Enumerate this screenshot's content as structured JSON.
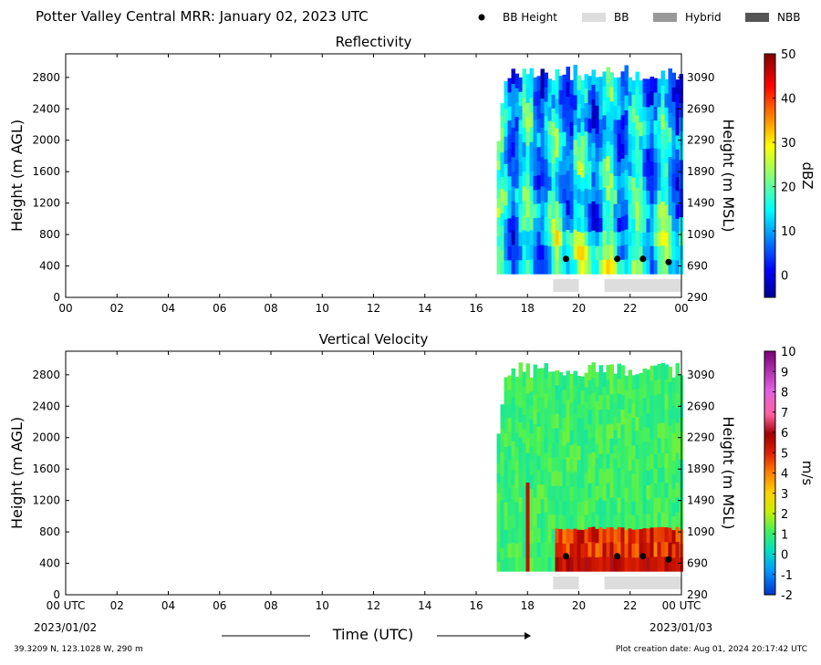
{
  "page": {
    "title": "Potter Valley Central MRR:  January 02, 2023 UTC",
    "location": "39.3209 N, 123.1028 W, 290 m",
    "creation_date": "Plot creation date: Aug 01, 2024 20:17:42 UTC",
    "time_label": "Time (UTC)",
    "start_date": "2023/01/02",
    "end_date": "2023/01/03"
  },
  "legend": {
    "items": [
      {
        "label": "BB Height",
        "color": "#000000",
        "kind": "dot"
      },
      {
        "label": "BB",
        "color": "#dddddd",
        "kind": "box"
      },
      {
        "label": "Hybrid",
        "color": "#999999",
        "kind": "box"
      },
      {
        "label": "NBB",
        "color": "#555555",
        "kind": "box"
      }
    ]
  },
  "chart_data": [
    {
      "type": "heatmap",
      "title": "Reflectivity",
      "ylabel": "Height (m AGL)",
      "ylabel_right": "Height (m MSL)",
      "xlim": [
        0,
        24
      ],
      "ylim": [
        0,
        3100
      ],
      "x_ticks": [
        "00",
        "02",
        "04",
        "06",
        "08",
        "10",
        "12",
        "14",
        "16",
        "18",
        "20",
        "22",
        "00"
      ],
      "y_ticks": [
        0,
        400,
        800,
        1200,
        1600,
        2000,
        2400,
        2800
      ],
      "y_ticks_right": [
        290,
        690,
        1090,
        1490,
        1890,
        2290,
        2690,
        3090
      ],
      "colorbar": {
        "label": "dBZ",
        "min": -5,
        "max": 50,
        "ticks": [
          0,
          10,
          20,
          30,
          40,
          50
        ],
        "colormap": "jet"
      },
      "data_start_hour": 16.8,
      "bb_height_points": [
        {
          "time": 19.5,
          "height": 490
        },
        {
          "time": 21.5,
          "height": 490
        },
        {
          "time": 22.5,
          "height": 490
        },
        {
          "time": 23.5,
          "height": 450
        }
      ],
      "bb_bands": [
        {
          "start": 19.0,
          "end": 20.0,
          "class": "BB"
        },
        {
          "start": 21.0,
          "end": 24.0,
          "class": "BB"
        }
      ]
    },
    {
      "type": "heatmap",
      "title": "Vertical Velocity",
      "ylabel": "Height (m AGL)",
      "ylabel_right": "Height (m MSL)",
      "xlim": [
        0,
        24
      ],
      "ylim": [
        0,
        3100
      ],
      "x_ticks": [
        "00 UTC",
        "02",
        "04",
        "06",
        "08",
        "10",
        "12",
        "14",
        "16",
        "18",
        "20",
        "22",
        "00 UTC"
      ],
      "y_ticks": [
        0,
        400,
        800,
        1200,
        1600,
        2000,
        2400,
        2800
      ],
      "y_ticks_right": [
        290,
        690,
        1090,
        1490,
        1890,
        2290,
        2690,
        3090
      ],
      "colorbar": {
        "label": "m/s",
        "min": -2,
        "max": 10,
        "ticks": [
          -2,
          -1,
          0,
          1,
          2,
          3,
          4,
          5,
          6,
          7,
          8,
          9,
          10
        ],
        "colormap": "velocity"
      },
      "data_start_hour": 16.8,
      "bb_height_points": [
        {
          "time": 19.5,
          "height": 490
        },
        {
          "time": 21.5,
          "height": 490
        },
        {
          "time": 22.5,
          "height": 490
        },
        {
          "time": 23.5,
          "height": 450
        }
      ],
      "bb_bands": [
        {
          "start": 19.0,
          "end": 20.0,
          "class": "BB"
        },
        {
          "start": 21.0,
          "end": 24.0,
          "class": "BB"
        }
      ]
    }
  ]
}
